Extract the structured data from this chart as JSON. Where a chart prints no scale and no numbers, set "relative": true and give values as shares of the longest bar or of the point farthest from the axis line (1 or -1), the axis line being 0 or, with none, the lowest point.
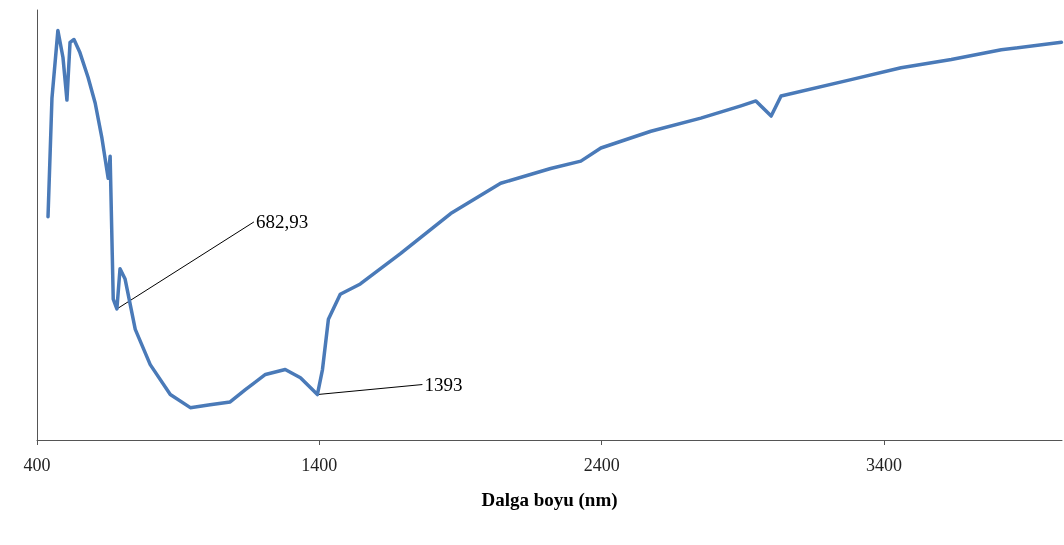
{
  "chart_data": {
    "type": "line",
    "relative": true,
    "xlabel": "Dalga boyu (nm)",
    "xlim": [
      400,
      4030
    ],
    "xticks": [
      400,
      1400,
      2400,
      3400
    ],
    "grid": false,
    "marker": "none",
    "line_style": "solid",
    "annotations": [
      {
        "text": "682,93",
        "x": 682.93,
        "y": 0.32
      },
      {
        "text": "1393",
        "x": 1393,
        "y": 0.111
      }
    ],
    "series": [
      {
        "color": "#4a7ab8",
        "x": [
          439,
          453,
          474,
          492,
          506,
          517,
          531,
          552,
          581,
          606,
          630,
          652,
          659,
          670,
          682.93,
          694,
          712,
          748,
          801,
          872,
          943,
          1013,
          1084,
          1138,
          1209,
          1279,
          1333,
          1368,
          1393,
          1411,
          1432,
          1474,
          1545,
          1687,
          1865,
          2042,
          2219,
          2326,
          2397,
          2574,
          2751,
          2893,
          2946,
          3000,
          3035,
          3283,
          3460,
          3638,
          3815,
          4028
        ],
        "values": [
          0.545,
          0.835,
          1.0,
          0.934,
          0.83,
          0.971,
          0.978,
          0.946,
          0.885,
          0.823,
          0.737,
          0.639,
          0.693,
          0.344,
          0.32,
          0.418,
          0.393,
          0.27,
          0.184,
          0.111,
          0.079,
          0.086,
          0.093,
          0.123,
          0.16,
          0.172,
          0.152,
          0.128,
          0.111,
          0.172,
          0.295,
          0.356,
          0.381,
          0.455,
          0.553,
          0.627,
          0.663,
          0.681,
          0.713,
          0.754,
          0.786,
          0.816,
          0.828,
          0.791,
          0.84,
          0.88,
          0.909,
          0.929,
          0.953,
          0.971
        ]
      }
    ]
  }
}
